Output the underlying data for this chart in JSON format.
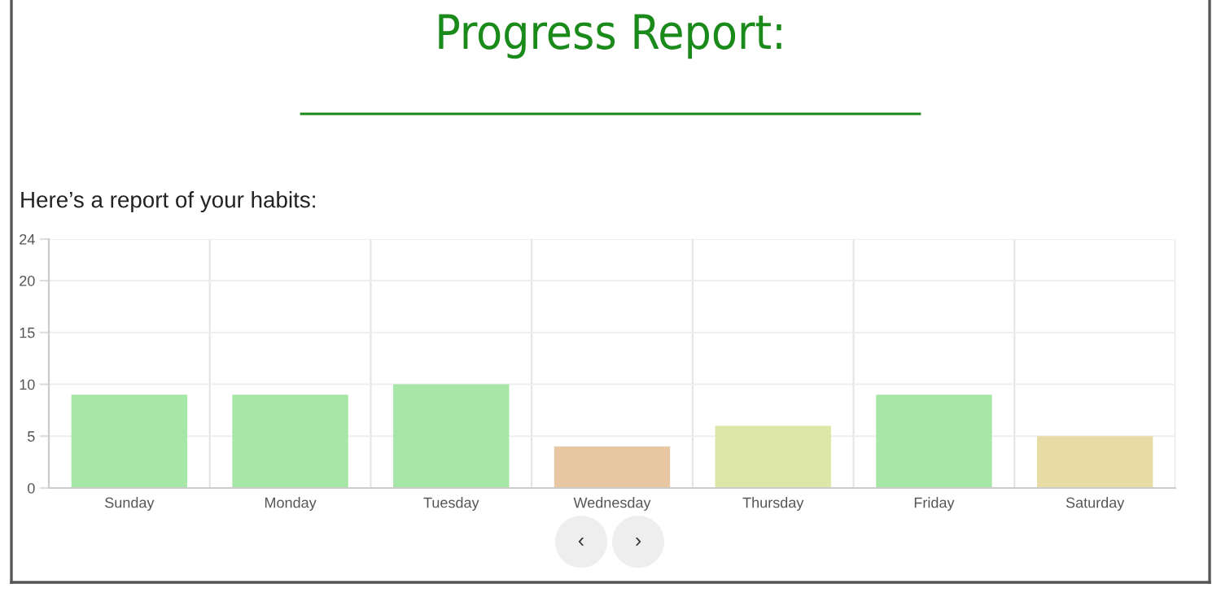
{
  "chart_data": {
    "type": "bar",
    "title": "Progress Report:",
    "subtitle": "Here’s a report of your habits:",
    "categories": [
      "Sunday",
      "Monday",
      "Tuesday",
      "Wednesday",
      "Thursday",
      "Friday",
      "Saturday"
    ],
    "values": [
      9,
      9,
      10,
      4,
      6,
      9,
      5
    ],
    "colors": [
      "#a6e6a6",
      "#a6e6a6",
      "#a6e6a6",
      "#e8c6a2",
      "#dce6a6",
      "#a6e6a6",
      "#e8dca6"
    ],
    "ylim": [
      0,
      24
    ],
    "yticks": [
      0,
      5,
      10,
      15,
      20,
      24
    ],
    "grid": true,
    "legend": false,
    "annotations": [
      "‹",
      "›"
    ]
  }
}
